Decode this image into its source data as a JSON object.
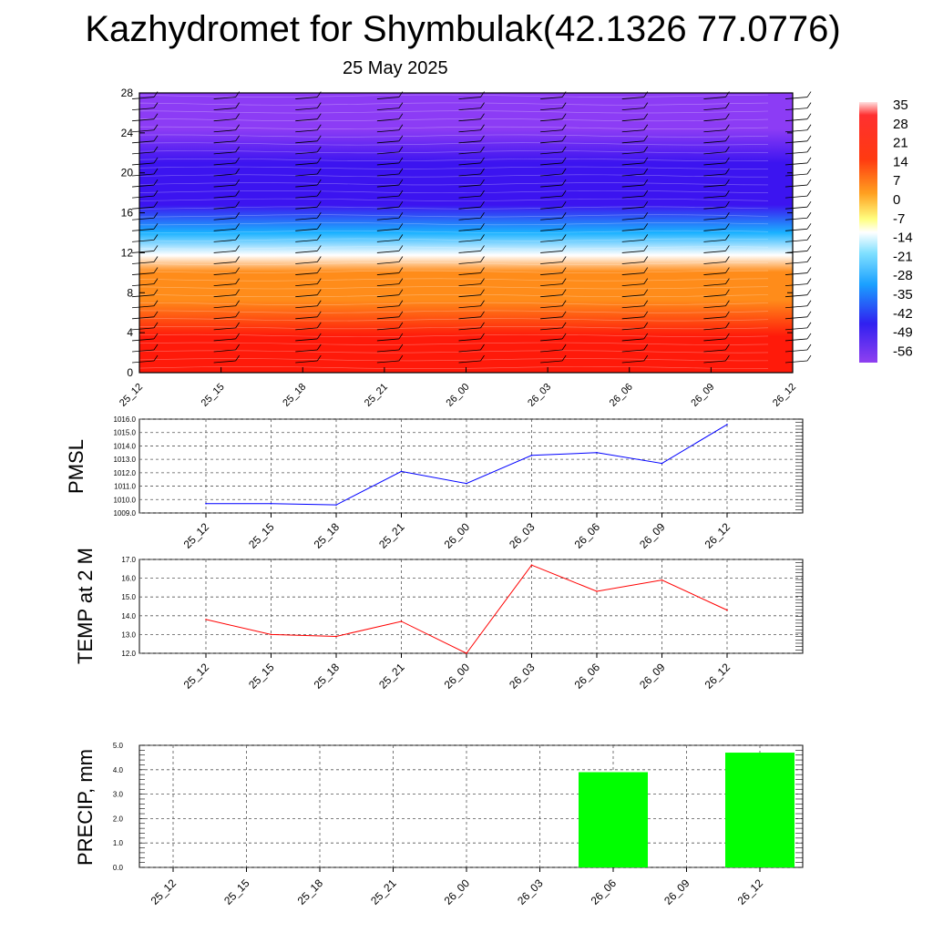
{
  "header": {
    "title": "Kazhydromet for Shymbulak(42.1326 77.0776)",
    "date": "25 May 2025"
  },
  "chart_data": [
    {
      "type": "heatmap",
      "x_ticks": [
        "25_12",
        "25_15",
        "25_18",
        "25_21",
        "26_00",
        "26_03",
        "26_06",
        "26_09",
        "26_12"
      ],
      "y_ticks": [
        "0",
        "4",
        "8",
        "12",
        "16",
        "20",
        "24",
        "28"
      ],
      "ylim": [
        0,
        28
      ],
      "colorbar_labels": [
        "35",
        "28",
        "21",
        "14",
        "7",
        "0",
        "-7",
        "-14",
        "-21",
        "-28",
        "-35",
        "-42",
        "-49",
        "-56"
      ],
      "colors": {
        "hot": "#ff1a0a",
        "warm": "#ff8c1a",
        "neutral": "#ffffff",
        "cool": "#1ab2ff",
        "cold": "#3c14f0",
        "coldest": "#8c3cf5"
      },
      "grid": false
    },
    {
      "type": "line",
      "ylabel": "PMSL",
      "x": [
        "25_12",
        "25_15",
        "25_18",
        "25_21",
        "26_00",
        "26_03",
        "26_06",
        "26_09",
        "26_12"
      ],
      "y_ticks": [
        "1009.0",
        "1010.0",
        "1011.0",
        "1012.0",
        "1013.0",
        "1014.0",
        "1015.0",
        "1016.0"
      ],
      "ylim": [
        1009.0,
        1016.0
      ],
      "series": [
        {
          "values": [
            1009.7,
            1009.7,
            1009.6,
            1012.1,
            1011.2,
            1013.3,
            1013.5,
            1012.7,
            1015.6
          ],
          "color": "#0000ff"
        }
      ],
      "grid": true
    },
    {
      "type": "line",
      "ylabel": "TEMP at 2 M",
      "x": [
        "25_12",
        "25_15",
        "25_18",
        "25_21",
        "26_00",
        "26_03",
        "26_06",
        "26_09",
        "26_12"
      ],
      "y_ticks": [
        "12.0",
        "13.0",
        "14.0",
        "15.0",
        "16.0",
        "17.0"
      ],
      "ylim": [
        12.0,
        17.0
      ],
      "series": [
        {
          "values": [
            13.8,
            13.0,
            12.9,
            13.7,
            12.0,
            16.7,
            15.3,
            15.9,
            14.3
          ],
          "color": "#ff0000"
        }
      ],
      "grid": true
    },
    {
      "type": "bar",
      "ylabel": "PRECIP, mm",
      "categories": [
        "25_12",
        "25_15",
        "25_18",
        "25_21",
        "26_00",
        "26_03",
        "26_06",
        "26_09",
        "26_12"
      ],
      "y_ticks": [
        "0.0",
        "1.0",
        "2.0",
        "3.0",
        "4.0",
        "5.0"
      ],
      "ylim": [
        0.0,
        5.0
      ],
      "values": [
        0,
        0,
        0,
        0,
        0,
        0,
        3.9,
        0,
        4.7
      ],
      "color": "#00ff00",
      "grid": true
    }
  ]
}
